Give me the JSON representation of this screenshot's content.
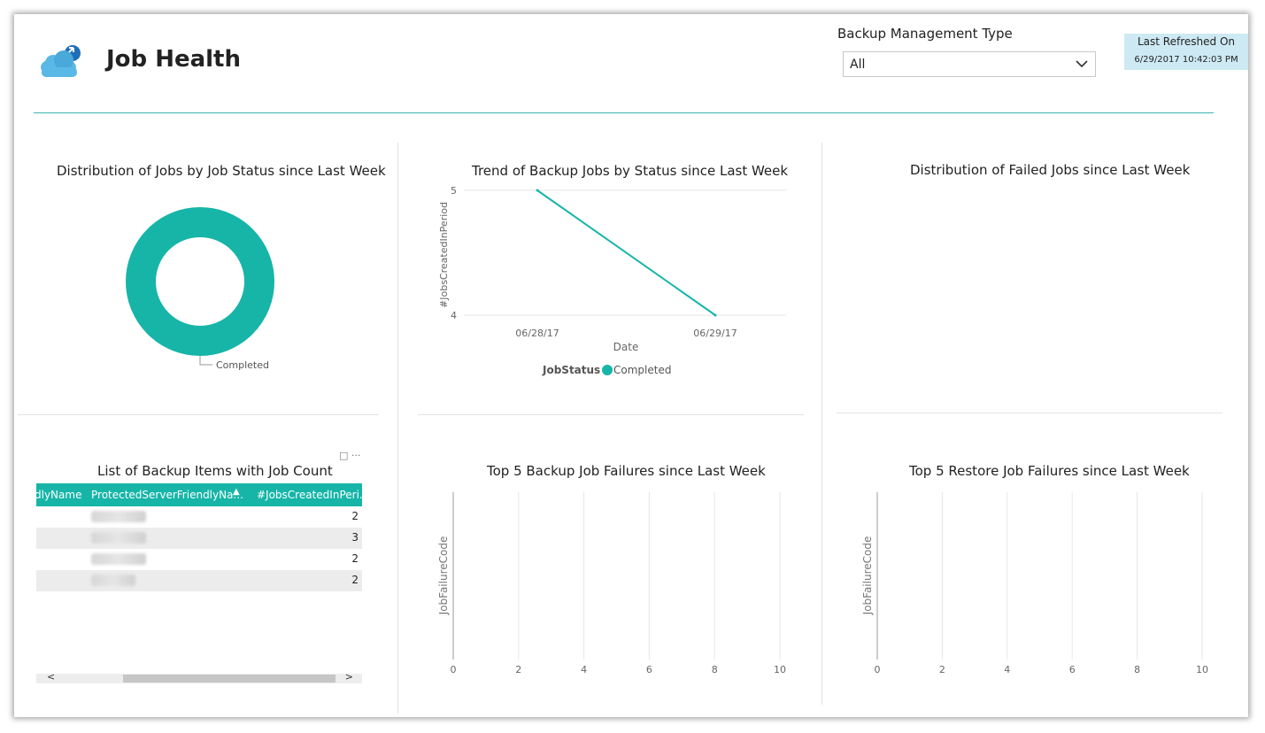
{
  "header": {
    "title": "Job Health",
    "filter_label": "Backup Management Type",
    "filter_value": "All",
    "refresh_label": "Last Refreshed On",
    "refresh_value": "6/29/2017 10:42:03 PM",
    "logo_icon": "cloud-backup-icon",
    "accent_color": "#3bb5ae",
    "teal_color": "#16b5a8"
  },
  "cards": {
    "donut": {
      "title": "Distribution of Jobs by Job Status since Last Week",
      "label": "Completed"
    },
    "trend": {
      "title": "Trend of Backup Jobs by Status since Last Week",
      "legend_title": "JobStatus",
      "legend_item": "Completed"
    },
    "failed": {
      "title": "Distribution of Failed Jobs since Last Week"
    },
    "table": {
      "title": "List of Backup Items with Job Count",
      "columns": [
        "dlyName",
        "ProtectedServerFriendlyNa...",
        "#JobsCreatedInPeri..."
      ],
      "rows": [
        {
          "count": "2"
        },
        {
          "count": "3"
        },
        {
          "count": "2"
        },
        {
          "count": "2"
        }
      ],
      "scroll_left": "<",
      "scroll_right": ">"
    },
    "backup_fail": {
      "title": "Top 5 Backup Job Failures since Last Week"
    },
    "restore_fail": {
      "title": "Top 5 Restore Job Failures since Last Week"
    }
  },
  "chart_data": [
    {
      "type": "pie",
      "title": "Distribution of Jobs by Job Status since Last Week",
      "categories": [
        "Completed"
      ],
      "values": [
        1
      ],
      "donut": true
    },
    {
      "type": "line",
      "title": "Trend of Backup Jobs by Status since Last Week",
      "x": [
        "06/28/17",
        "06/29/17"
      ],
      "series": [
        {
          "name": "Completed",
          "values": [
            5,
            4
          ]
        }
      ],
      "xlabel": "Date",
      "ylabel": "#JobsCreatedInPeriod",
      "ylim": [
        4,
        5
      ],
      "yticks": [
        4,
        5
      ],
      "legend": "bottom",
      "grid": true
    },
    {
      "type": "bar",
      "title": "Top 5 Backup Job Failures since Last Week",
      "categories": [],
      "values": [],
      "ylabel": "JobFailureCode",
      "xticks": [
        0,
        2,
        4,
        6,
        8,
        10
      ],
      "xlim": [
        0,
        10
      ],
      "grid": true
    },
    {
      "type": "bar",
      "title": "Top 5 Restore Job Failures since Last Week",
      "categories": [],
      "values": [],
      "ylabel": "JobFailureCode",
      "xticks": [
        0,
        2,
        4,
        6,
        8,
        10
      ],
      "xlim": [
        0,
        10
      ],
      "grid": true
    }
  ]
}
